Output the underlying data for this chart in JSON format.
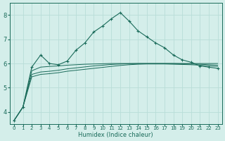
{
  "xlabel": "Humidex (Indice chaleur)",
  "background_color": "#d4eeea",
  "grid_color": "#b8ddd8",
  "line_color": "#1a6b5a",
  "xlim": [
    -0.5,
    23.5
  ],
  "ylim": [
    3.5,
    8.5
  ],
  "xticks": [
    0,
    1,
    2,
    3,
    4,
    5,
    6,
    7,
    8,
    9,
    10,
    11,
    12,
    13,
    14,
    15,
    16,
    17,
    18,
    19,
    20,
    21,
    22,
    23
  ],
  "yticks": [
    4,
    5,
    6,
    7,
    8
  ],
  "main_x": [
    0,
    1,
    2,
    3,
    4,
    5,
    6,
    7,
    8,
    9,
    10,
    11,
    12,
    13,
    14,
    15,
    16,
    17,
    18,
    19,
    20,
    21,
    22,
    23
  ],
  "main_y": [
    3.65,
    4.2,
    5.85,
    6.35,
    6.0,
    5.95,
    6.1,
    6.55,
    6.85,
    7.3,
    7.55,
    7.85,
    8.1,
    7.75,
    7.35,
    7.1,
    6.85,
    6.65,
    6.35,
    6.15,
    6.05,
    5.9,
    5.85,
    5.8
  ],
  "line2_x": [
    0,
    1,
    2,
    3,
    4,
    5,
    6,
    7,
    8,
    9,
    10,
    11,
    12,
    13,
    14,
    15,
    16,
    17,
    18,
    19,
    20,
    21,
    22,
    23
  ],
  "line2_y": [
    3.65,
    4.2,
    5.7,
    5.85,
    5.88,
    5.9,
    5.93,
    5.95,
    5.97,
    5.98,
    5.99,
    6.0,
    6.0,
    6.0,
    6.0,
    6.0,
    6.0,
    6.0,
    6.0,
    6.0,
    6.0,
    6.0,
    6.0,
    6.0
  ],
  "line3_x": [
    0,
    1,
    2,
    3,
    4,
    5,
    6,
    7,
    8,
    9,
    10,
    11,
    12,
    13,
    14,
    15,
    16,
    17,
    18,
    19,
    20,
    21,
    22,
    23
  ],
  "line3_y": [
    3.65,
    4.2,
    5.55,
    5.65,
    5.68,
    5.72,
    5.78,
    5.82,
    5.86,
    5.9,
    5.93,
    5.96,
    5.98,
    5.99,
    6.0,
    6.0,
    6.0,
    6.0,
    6.0,
    5.99,
    5.98,
    5.97,
    5.95,
    5.93
  ],
  "line4_x": [
    0,
    1,
    2,
    3,
    4,
    5,
    6,
    7,
    8,
    9,
    10,
    11,
    12,
    13,
    14,
    15,
    16,
    17,
    18,
    19,
    20,
    21,
    22,
    23
  ],
  "line4_y": [
    3.65,
    4.2,
    5.45,
    5.55,
    5.58,
    5.62,
    5.68,
    5.72,
    5.76,
    5.8,
    5.84,
    5.88,
    5.92,
    5.95,
    5.97,
    5.98,
    5.98,
    5.98,
    5.97,
    5.96,
    5.95,
    5.93,
    5.9,
    5.88
  ]
}
